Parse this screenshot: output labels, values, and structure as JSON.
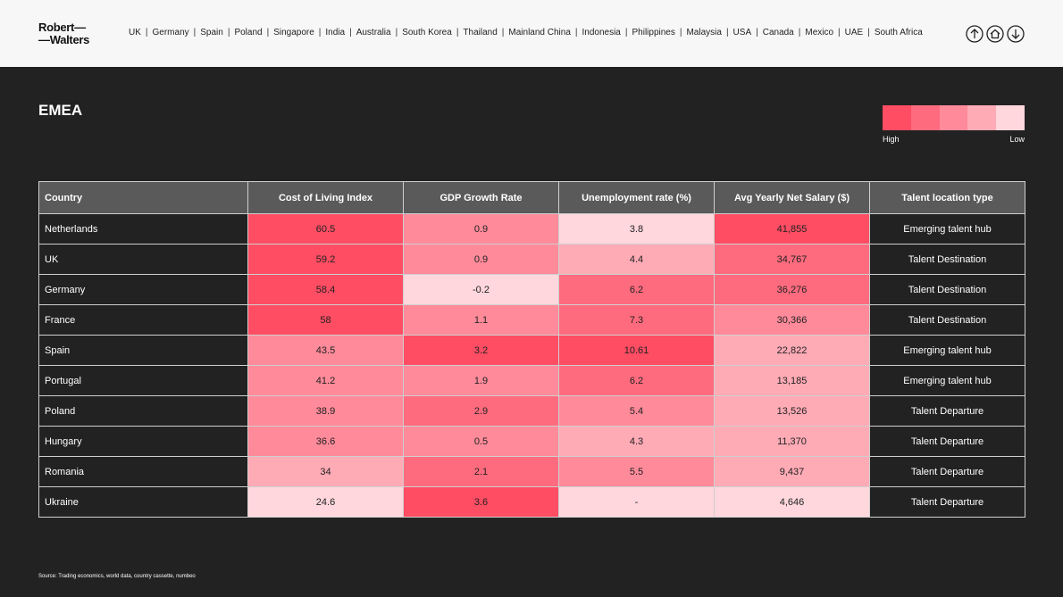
{
  "header": {
    "logo": [
      "Robert—",
      "—Walters"
    ],
    "nav": [
      "UK",
      "Germany",
      "Spain",
      "Poland",
      "Singapore",
      "India",
      "Australia",
      "South Korea",
      "Thailand",
      "Mainland China",
      "Indonesia",
      "Philippines",
      "Malaysia",
      "USA",
      "Canada",
      "Mexico",
      "UAE",
      "South Africa"
    ]
  },
  "page": {
    "title": "EMEA",
    "legend": {
      "colors": [
        "#ff4d63",
        "#ff6b7e",
        "#ff8a9a",
        "#ffabb6",
        "#ffd7dd"
      ],
      "high": "High",
      "low": "Low"
    }
  },
  "table": {
    "columns": [
      "Country",
      "Cost of Living Index",
      "GDP Growth Rate",
      "Unemployment rate (%)",
      "Avg Yearly Net Salary ($)",
      "Talent location type"
    ],
    "rows": [
      [
        "Netherlands",
        "60.5",
        "0.9",
        "3.8",
        "41,855",
        "Emerging talent hub"
      ],
      [
        "UK",
        "59.2",
        "0.9",
        "4.4",
        "34,767",
        "Talent Destination"
      ],
      [
        "Germany",
        "58.4",
        "-0.2",
        "6.2",
        "36,276",
        "Talent Destination"
      ],
      [
        "France",
        "58",
        "1.1",
        "7.3",
        "30,366",
        "Talent Destination"
      ],
      [
        "Spain",
        "43.5",
        "3.2",
        "10.61",
        "22,822",
        "Emerging talent hub"
      ],
      [
        "Portugal",
        "41.2",
        "1.9",
        "6.2",
        "13,185",
        "Emerging talent hub"
      ],
      [
        "Poland",
        "38.9",
        "2.9",
        "5.4",
        "13,526",
        "Talent Departure"
      ],
      [
        "Hungary",
        "36.6",
        "0.5",
        "4.3",
        "11,370",
        "Talent Departure"
      ],
      [
        "Romania",
        "34",
        "2.1",
        "5.5",
        "9,437",
        "Talent Departure"
      ],
      [
        "Ukraine",
        "24.6",
        "3.6",
        "-",
        "4,646",
        "Talent Departure"
      ]
    ],
    "cell_colors": [
      [
        "#222222",
        "#ff4d63",
        "#ff8a9a",
        "#ffd7dd",
        "#ff4d63",
        "#222222"
      ],
      [
        "#222222",
        "#ff4d63",
        "#ff8a9a",
        "#ffabb6",
        "#ff6b7e",
        "#222222"
      ],
      [
        "#222222",
        "#ff4d63",
        "#ffd7dd",
        "#ff6b7e",
        "#ff6b7e",
        "#222222"
      ],
      [
        "#222222",
        "#ff4d63",
        "#ff8a9a",
        "#ff6b7e",
        "#ff8a9a",
        "#222222"
      ],
      [
        "#222222",
        "#ff8a9a",
        "#ff4d63",
        "#ff4d63",
        "#ffabb6",
        "#222222"
      ],
      [
        "#222222",
        "#ff8a9a",
        "#ff8a9a",
        "#ff6b7e",
        "#ffabb6",
        "#222222"
      ],
      [
        "#222222",
        "#ff8a9a",
        "#ff6b7e",
        "#ff8a9a",
        "#ffabb6",
        "#222222"
      ],
      [
        "#222222",
        "#ff8a9a",
        "#ff8a9a",
        "#ffabb6",
        "#ffabb6",
        "#222222"
      ],
      [
        "#222222",
        "#ffabb6",
        "#ff6b7e",
        "#ff8a9a",
        "#ffabb6",
        "#222222"
      ],
      [
        "#222222",
        "#ffd7dd",
        "#ff4d63",
        "#ffd7dd",
        "#ffd7dd",
        "#222222"
      ]
    ]
  },
  "source": "Source: Trading economics, world data, country cassette, numbeo"
}
